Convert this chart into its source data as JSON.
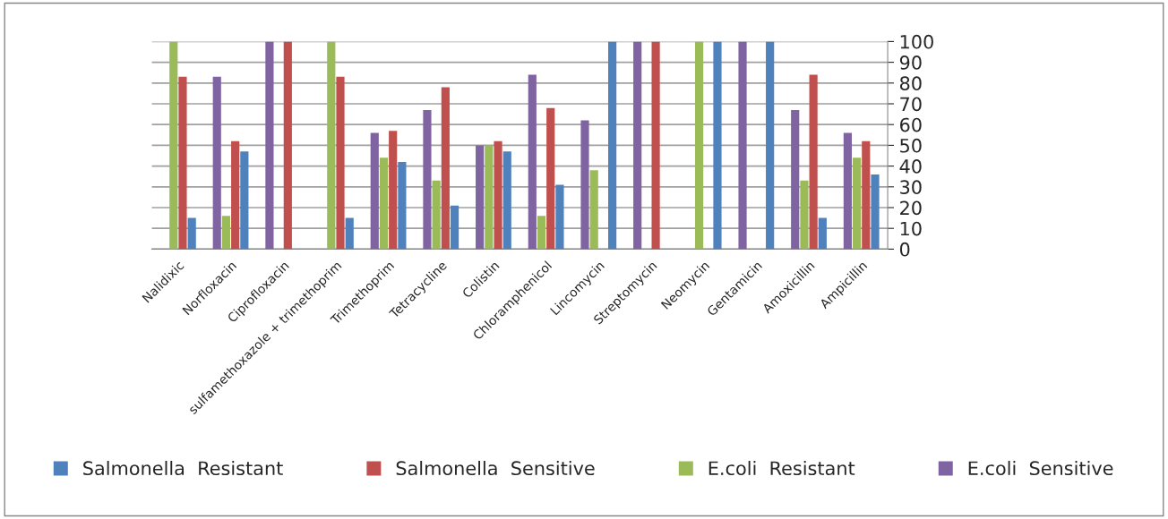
{
  "chart_data": {
    "type": "bar",
    "categories": [
      "Nalidixic",
      "Norfloxacin",
      "Ciprofloxacin",
      "sulfamethoxazole + trimethoprim",
      "Trimethoprim",
      "Tetracycline",
      "Colistin",
      "Chloramphenicol",
      "Lincomycin",
      "Streptomycin",
      "Neomycin",
      "Gentamicin",
      "Amoxicillin",
      "Ampicillin"
    ],
    "series": [
      {
        "name": "Salmonella  Resistant",
        "color": "#4f81bd",
        "values": [
          15,
          47,
          0,
          15,
          42,
          21,
          47,
          31,
          100,
          0,
          100,
          100,
          15,
          36
        ]
      },
      {
        "name": "Salmonella  Sensitive",
        "color": "#c0504d",
        "values": [
          83,
          52,
          100,
          83,
          57,
          78,
          52,
          68,
          0,
          100,
          0,
          0,
          84,
          52
        ]
      },
      {
        "name": "E.coli  Resistant",
        "color": "#9bbb59",
        "values": [
          100,
          16,
          0,
          100,
          44,
          33,
          50,
          16,
          38,
          0,
          100,
          0,
          33,
          44
        ]
      },
      {
        "name": "E.coli  Sensitive",
        "color": "#8064a2",
        "values": [
          0,
          83,
          100,
          0,
          56,
          67,
          50,
          84,
          62,
          100,
          0,
          100,
          67,
          56
        ]
      }
    ],
    "ylim": [
      0,
      100
    ],
    "yticks": [
      0,
      10,
      20,
      30,
      40,
      50,
      60,
      70,
      80,
      90,
      100
    ],
    "grid": "y",
    "legend": "bottom"
  }
}
